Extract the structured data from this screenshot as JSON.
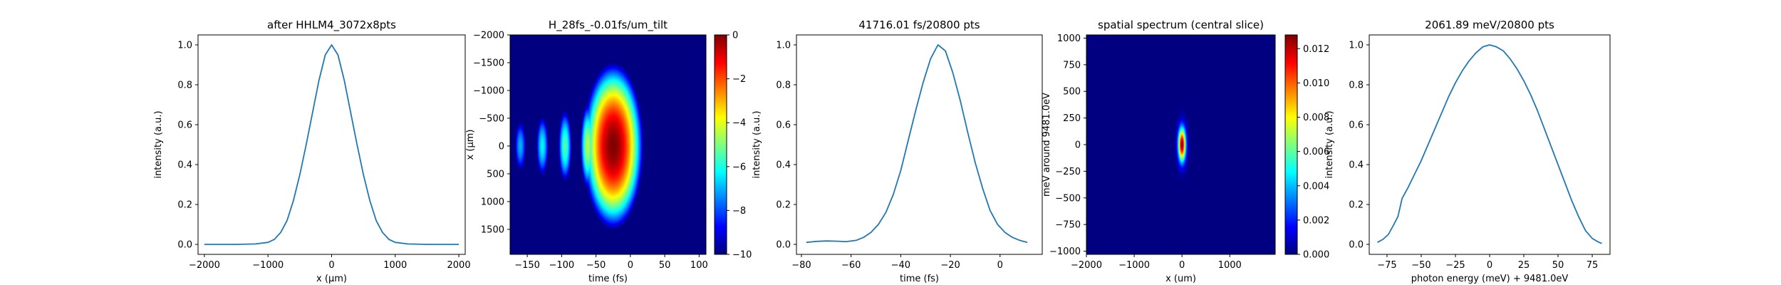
{
  "chart_data": [
    {
      "type": "line",
      "title": "after HHLM4_3072x8pts",
      "xlabel": "x (μm)",
      "ylabel": "intensity (a.u.)",
      "xlim": [
        -2100,
        2100
      ],
      "ylim": [
        -0.05,
        1.05
      ],
      "xticks": [
        -2000,
        -1000,
        0,
        1000,
        2000
      ],
      "xtick_labels": [
        "−2000",
        "−1000",
        "0",
        "1000",
        "2000"
      ],
      "yticks": [
        0.0,
        0.2,
        0.4,
        0.6,
        0.8,
        1.0
      ],
      "ytick_labels": [
        "0.0",
        "0.2",
        "0.4",
        "0.6",
        "0.8",
        "1.0"
      ],
      "grid": false,
      "color": "#1f77b4",
      "x": [
        -2000,
        -1500,
        -1200,
        -1000,
        -900,
        -800,
        -700,
        -600,
        -500,
        -400,
        -300,
        -200,
        -100,
        0,
        100,
        200,
        300,
        400,
        500,
        600,
        700,
        800,
        900,
        1000,
        1200,
        1500,
        2000
      ],
      "y": [
        0.0,
        0.0,
        0.002,
        0.01,
        0.025,
        0.06,
        0.12,
        0.22,
        0.35,
        0.5,
        0.66,
        0.82,
        0.95,
        1.0,
        0.95,
        0.82,
        0.66,
        0.5,
        0.35,
        0.22,
        0.12,
        0.06,
        0.025,
        0.01,
        0.002,
        0.0,
        0.0
      ]
    },
    {
      "type": "heatmap",
      "title": "H_28fs_-0.01fs/um_tilt",
      "xlabel": "time (fs)",
      "ylabel": "x (μm)",
      "xlim": [
        -175,
        110
      ],
      "ylim": [
        1950,
        -2000
      ],
      "xticks": [
        -150,
        -100,
        -50,
        0,
        50,
        100
      ],
      "xtick_labels": [
        "−150",
        "−100",
        "−50",
        "0",
        "50",
        "100"
      ],
      "yticks": [
        -2000,
        -1500,
        -1000,
        -500,
        0,
        500,
        1000,
        1500
      ],
      "ytick_labels": [
        "−2000",
        "−1500",
        "−1000",
        "−500",
        "0",
        "500",
        "1000",
        "1500"
      ],
      "colormap": "jet",
      "colorbar": {
        "vmin": -10,
        "vmax": 0,
        "ticks": [
          0,
          -2,
          -4,
          -6,
          -8,
          -10
        ],
        "tick_labels": [
          "0",
          "−2",
          "−4",
          "−6",
          "−8",
          "−10"
        ]
      },
      "blobs": [
        {
          "t": -25,
          "x": 0,
          "sigma_t": 28,
          "sigma_x": 950,
          "peak": 0
        },
        {
          "t": -62,
          "x": 0,
          "sigma_t": 9,
          "sigma_x": 650,
          "peak": -4.5
        },
        {
          "t": -95,
          "x": 0,
          "sigma_t": 9,
          "sigma_x": 600,
          "peak": -5.5
        },
        {
          "t": -128,
          "x": 0,
          "sigma_t": 9,
          "sigma_x": 550,
          "peak": -6.3
        },
        {
          "t": -160,
          "x": 0,
          "sigma_t": 9,
          "sigma_x": 500,
          "peak": -7.0
        }
      ]
    },
    {
      "type": "line",
      "title": "41716.01 fs/20800 pts",
      "xlabel": "time (fs)",
      "ylabel": "intensity (a.u.)",
      "xlim": [
        -82,
        17
      ],
      "ylim": [
        -0.05,
        1.05
      ],
      "xticks": [
        -80,
        -60,
        -40,
        -20,
        0
      ],
      "xtick_labels": [
        "−80",
        "−60",
        "−40",
        "−20",
        "0"
      ],
      "yticks": [
        0.0,
        0.2,
        0.4,
        0.6,
        0.8,
        1.0
      ],
      "ytick_labels": [
        "0.0",
        "0.2",
        "0.4",
        "0.6",
        "0.8",
        "1.0"
      ],
      "grid": false,
      "color": "#1f77b4",
      "x": [
        -78,
        -74,
        -70,
        -66,
        -62,
        -58,
        -55,
        -52,
        -49,
        -46,
        -43,
        -40,
        -37,
        -34,
        -31,
        -28,
        -25,
        -22,
        -19,
        -16,
        -13,
        -10,
        -7,
        -4,
        -1,
        2,
        5,
        8,
        11
      ],
      "y": [
        0.01,
        0.015,
        0.017,
        0.016,
        0.014,
        0.02,
        0.035,
        0.06,
        0.1,
        0.16,
        0.25,
        0.37,
        0.52,
        0.67,
        0.81,
        0.93,
        1.0,
        0.97,
        0.86,
        0.72,
        0.56,
        0.41,
        0.28,
        0.17,
        0.1,
        0.06,
        0.035,
        0.02,
        0.01
      ]
    },
    {
      "type": "heatmap",
      "title": "spatial spectrum (central slice)",
      "xlabel": "x (um)",
      "ylabel": "meV around 9481.0eV",
      "xlim": [
        -2000,
        1950
      ],
      "ylim": [
        -1030,
        1030
      ],
      "xticks": [
        -2000,
        -1000,
        0,
        1000
      ],
      "xtick_labels": [
        "−2000",
        "−1000",
        "0",
        "1000"
      ],
      "yticks": [
        1000,
        750,
        500,
        250,
        0,
        -250,
        -500,
        -750,
        -1000
      ],
      "ytick_labels": [
        "1000",
        "750",
        "500",
        "250",
        "0",
        "−250",
        "−500",
        "−750",
        "−1000"
      ],
      "colormap": "jet",
      "colorbar": {
        "vmin": 0,
        "vmax": 0.0128,
        "ticks": [
          0.0,
          0.002,
          0.004,
          0.006,
          0.008,
          0.01,
          0.012
        ],
        "tick_labels": [
          "0.000",
          "0.002",
          "0.004",
          "0.006",
          "0.008",
          "0.010",
          "0.012"
        ]
      },
      "blobs": [
        {
          "x": 0,
          "e": 0,
          "sigma_x": 55,
          "sigma_e": 110,
          "peak": 0.0128
        }
      ]
    },
    {
      "type": "line",
      "title": "2061.89 meV/20800 pts",
      "xlabel": "photon energy (meV) + 9481.0eV",
      "ylabel": "intensity (a.u.)",
      "xlim": [
        -88,
        88
      ],
      "ylim": [
        -0.05,
        1.05
      ],
      "xticks": [
        -75,
        -50,
        -25,
        0,
        25,
        50,
        75
      ],
      "xtick_labels": [
        "−75",
        "−50",
        "−25",
        "0",
        "25",
        "50",
        "75"
      ],
      "yticks": [
        0.0,
        0.2,
        0.4,
        0.6,
        0.8,
        1.0
      ],
      "ytick_labels": [
        "0.0",
        "0.2",
        "0.4",
        "0.6",
        "0.8",
        "1.0"
      ],
      "grid": false,
      "color": "#1f77b4",
      "x": [
        -82,
        -78,
        -74,
        -70,
        -67,
        -65,
        -64,
        -60,
        -55,
        -50,
        -45,
        -40,
        -35,
        -30,
        -25,
        -20,
        -15,
        -10,
        -5,
        0,
        5,
        10,
        15,
        20,
        25,
        30,
        35,
        40,
        45,
        50,
        55,
        60,
        65,
        70,
        75,
        80,
        82
      ],
      "y": [
        0.01,
        0.025,
        0.05,
        0.1,
        0.14,
        0.2,
        0.23,
        0.28,
        0.35,
        0.42,
        0.5,
        0.58,
        0.66,
        0.74,
        0.81,
        0.87,
        0.92,
        0.96,
        0.99,
        1.0,
        0.99,
        0.97,
        0.93,
        0.88,
        0.82,
        0.75,
        0.67,
        0.58,
        0.49,
        0.4,
        0.31,
        0.22,
        0.14,
        0.07,
        0.03,
        0.01,
        0.005
      ]
    }
  ]
}
